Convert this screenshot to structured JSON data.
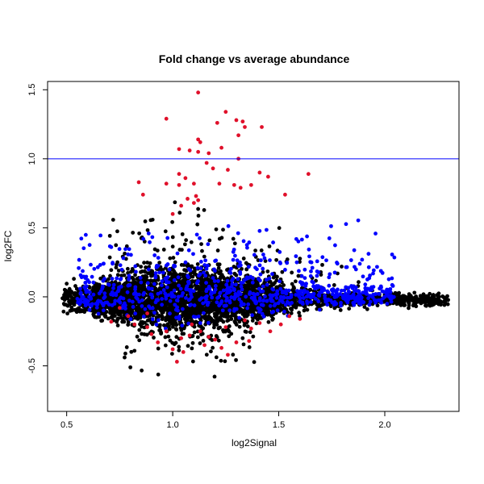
{
  "chart_data": {
    "type": "scatter",
    "title": "Fold change vs average abundance",
    "xlabel": "log2Signal",
    "ylabel": "log2FC",
    "xlim": [
      0.41,
      2.35
    ],
    "ylim": [
      -0.83,
      1.56
    ],
    "x_ticks": [
      0.5,
      1.0,
      1.5,
      2.0
    ],
    "x_tick_labels": [
      "0.5",
      "1.0",
      "1.5",
      "2.0"
    ],
    "y_ticks": [
      -0.5,
      0.0,
      0.5,
      1.0,
      1.5
    ],
    "y_tick_labels": [
      "-0.5",
      "0.0",
      "0.5",
      "1.0",
      "1.5"
    ],
    "hline": {
      "y": 1.0,
      "color": "#0000ff"
    },
    "colors": {
      "black": "#000000",
      "blue": "#0000ff",
      "red": "#e0102a"
    },
    "grid": false,
    "legend": "none",
    "series": [
      {
        "color": "red",
        "points": [
          [
            0.97,
            1.29
          ],
          [
            1.12,
            1.48
          ],
          [
            1.25,
            1.34
          ],
          [
            1.21,
            1.26
          ],
          [
            1.3,
            1.28
          ],
          [
            1.33,
            1.27
          ],
          [
            1.34,
            1.23
          ],
          [
            1.42,
            1.23
          ],
          [
            1.12,
            1.14
          ],
          [
            1.13,
            1.12
          ],
          [
            1.03,
            1.07
          ],
          [
            1.08,
            1.06
          ],
          [
            1.12,
            1.05
          ],
          [
            1.17,
            1.04
          ],
          [
            1.23,
            1.08
          ],
          [
            1.31,
            1.17
          ],
          [
            1.31,
            1.0
          ],
          [
            1.16,
            0.97
          ],
          [
            1.19,
            0.93
          ],
          [
            1.26,
            0.92
          ],
          [
            1.41,
            0.9
          ],
          [
            1.45,
            0.87
          ],
          [
            1.64,
            0.89
          ],
          [
            1.03,
            0.89
          ],
          [
            0.97,
            0.82
          ],
          [
            1.06,
            0.86
          ],
          [
            1.1,
            0.82
          ],
          [
            1.03,
            0.81
          ],
          [
            0.84,
            0.83
          ],
          [
            1.22,
            0.82
          ],
          [
            1.29,
            0.81
          ],
          [
            1.32,
            0.79
          ],
          [
            1.37,
            0.81
          ],
          [
            1.11,
            0.73
          ],
          [
            1.07,
            0.71
          ],
          [
            1.1,
            0.68
          ],
          [
            1.12,
            0.7
          ],
          [
            1.04,
            0.66
          ],
          [
            0.86,
            0.74
          ],
          [
            1.53,
            0.74
          ],
          [
            1.0,
            0.6
          ],
          [
            1.34,
            -0.17
          ],
          [
            1.41,
            -0.19
          ],
          [
            1.51,
            -0.2
          ],
          [
            1.6,
            -0.16
          ],
          [
            1.55,
            -0.14
          ],
          [
            1.46,
            -0.25
          ],
          [
            0.82,
            -0.2
          ],
          [
            0.88,
            -0.22
          ],
          [
            0.9,
            -0.27
          ],
          [
            0.93,
            -0.33
          ],
          [
            0.97,
            -0.25
          ],
          [
            1.0,
            -0.38
          ],
          [
            1.04,
            -0.3
          ],
          [
            1.05,
            -0.4
          ],
          [
            1.02,
            -0.47
          ],
          [
            1.08,
            -0.28
          ],
          [
            1.13,
            -0.25
          ],
          [
            1.15,
            -0.35
          ],
          [
            1.17,
            -0.29
          ],
          [
            1.2,
            -0.31
          ],
          [
            1.23,
            -0.37
          ],
          [
            1.26,
            -0.42
          ],
          [
            1.3,
            -0.33
          ],
          [
            1.36,
            -0.32
          ],
          [
            1.37,
            -0.23
          ],
          [
            0.88,
            -0.12
          ],
          [
            0.79,
            -0.14
          ],
          [
            0.71,
            -0.18
          ],
          [
            0.75,
            -0.08
          ],
          [
            1.09,
            -0.2
          ],
          [
            1.25,
            -0.22
          ]
        ]
      }
    ]
  }
}
